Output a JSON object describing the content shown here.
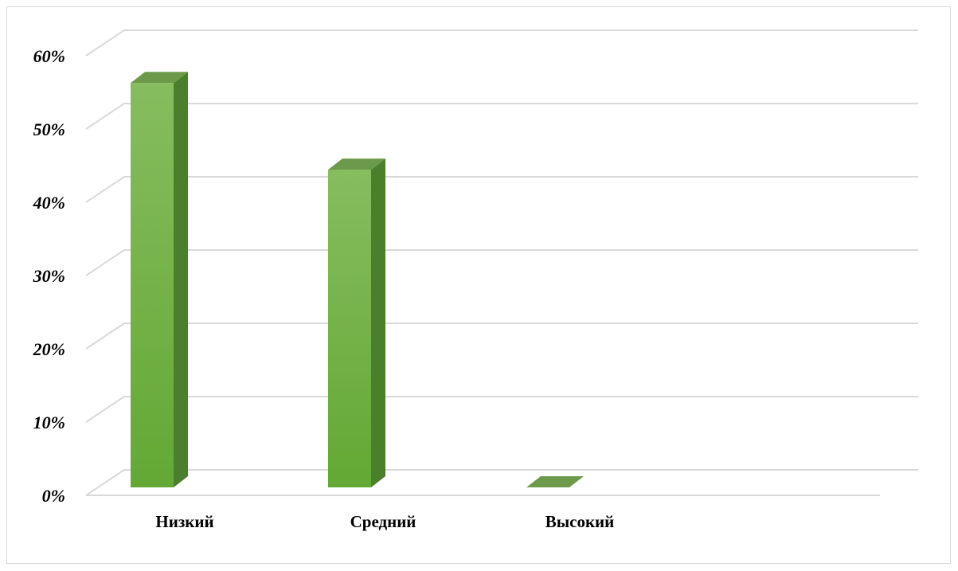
{
  "chart_data": {
    "type": "bar",
    "style": "3d-column",
    "categories": [
      "Низкий",
      "Средний",
      "Высокий"
    ],
    "values": [
      56,
      44,
      0
    ],
    "yticks": [
      "0%",
      "10%",
      "20%",
      "30%",
      "40%",
      "50%",
      "60%"
    ],
    "tick_values": [
      0,
      10,
      20,
      30,
      40,
      50,
      60
    ],
    "ylim": [
      0,
      60
    ],
    "grid": true,
    "legend": false,
    "title": "",
    "xlabel": "",
    "ylabel": "",
    "colors": {
      "bar_front_top": "#86bd5f",
      "bar_front_bottom": "#63a834",
      "bar_side": "#4a7f2b",
      "bar_top": "#6c9a4a",
      "grid": "#d9d9d9",
      "frame": "#d9d9d9"
    }
  }
}
